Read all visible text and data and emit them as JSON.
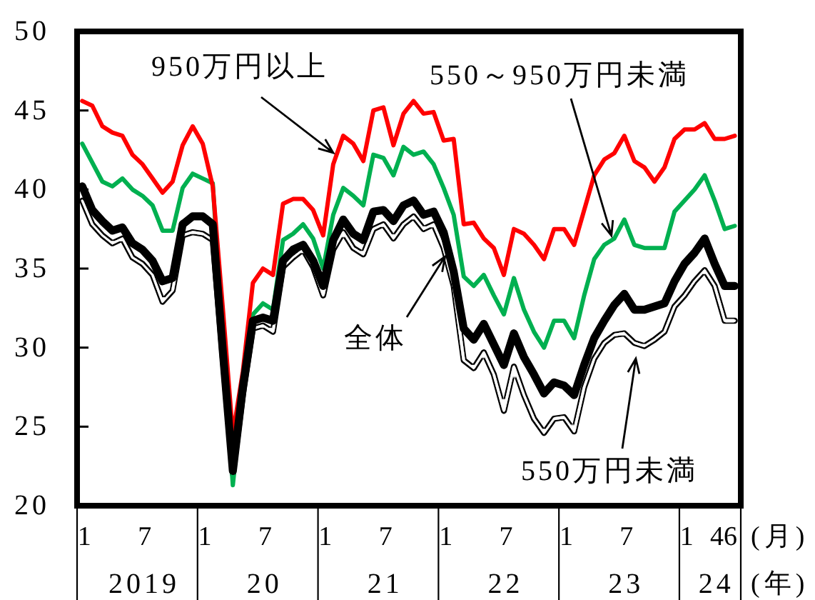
{
  "chart_data": {
    "type": "line",
    "x": [
      "2019-01",
      "2019-02",
      "2019-03",
      "2019-04",
      "2019-05",
      "2019-06",
      "2019-07",
      "2019-08",
      "2019-09",
      "2019-10",
      "2019-11",
      "2019-12",
      "2020-01",
      "2020-02",
      "2020-03",
      "2020-04",
      "2020-05",
      "2020-06",
      "2020-07",
      "2020-08",
      "2020-09",
      "2020-10",
      "2020-11",
      "2020-12",
      "2021-01",
      "2021-02",
      "2021-03",
      "2021-04",
      "2021-05",
      "2021-06",
      "2021-07",
      "2021-08",
      "2021-09",
      "2021-10",
      "2021-11",
      "2021-12",
      "2022-01",
      "2022-02",
      "2022-03",
      "2022-04",
      "2022-05",
      "2022-06",
      "2022-07",
      "2022-08",
      "2022-09",
      "2022-10",
      "2022-11",
      "2022-12",
      "2023-01",
      "2023-02",
      "2023-03",
      "2023-04",
      "2023-05",
      "2023-06",
      "2023-07",
      "2023-08",
      "2023-09",
      "2023-10",
      "2023-11",
      "2023-12",
      "2024-01",
      "2024-02",
      "2024-03",
      "2024-04",
      "2024-05",
      "2024-06"
    ],
    "xlim": [
      "2018-12-16",
      "2024-06-19"
    ],
    "xticks": [
      {
        "value": "2018-12-16",
        "label": null
      },
      {
        "value": "2019-12-16",
        "label": null
      },
      {
        "value": "2020-12-16",
        "label": null
      },
      {
        "value": "2021-12-16",
        "label": null
      },
      {
        "value": "2022-12-16",
        "label": null
      },
      {
        "value": "2023-12-16",
        "label": null
      },
      {
        "value": "2024-06-19",
        "label": null
      },
      {
        "value": "2019-01",
        "label": "1"
      },
      {
        "value": "2019-07",
        "label": "7"
      },
      {
        "value": "2020-01",
        "label": "1"
      },
      {
        "value": "2020-07",
        "label": "7"
      },
      {
        "value": "2021-01",
        "label": "1"
      },
      {
        "value": "2021-07",
        "label": "7"
      },
      {
        "value": "2022-01",
        "label": "1"
      },
      {
        "value": "2022-07",
        "label": "7"
      },
      {
        "value": "2023-01",
        "label": "1"
      },
      {
        "value": "2023-07",
        "label": "7"
      },
      {
        "value": "2024-01",
        "label": "1"
      },
      {
        "value": "2024-04",
        "label": "4"
      },
      {
        "value": "2024-06",
        "label": "6"
      }
    ],
    "xlabel": "(月)",
    "x2lim": [
      "2018-12-16",
      "2024-06-19"
    ],
    "x2ticks": [
      {
        "value": "2019-07",
        "label": "2019"
      },
      {
        "value": "2020-07",
        "label": "20"
      },
      {
        "value": "2021-07",
        "label": "21"
      },
      {
        "value": "2022-07",
        "label": "22"
      },
      {
        "value": "2023-07",
        "label": "23"
      },
      {
        "value": "2024-04",
        "label": "24"
      }
    ],
    "x2label": "(年)",
    "ylim": [
      20,
      50
    ],
    "yticks": [
      20,
      25,
      30,
      35,
      40,
      45,
      50
    ],
    "series": [
      {
        "name": "550万円未満",
        "color": "#000000",
        "values": [
          39.3,
          37.8,
          37.1,
          36.6,
          36.9,
          35.7,
          35.3,
          34.6,
          32.9,
          33.6,
          37.1,
          37.3,
          37.2,
          36.8,
          29.3,
          22.0,
          27.0,
          31.2,
          31.4,
          31.0,
          35.1,
          35.7,
          36.2,
          35.1,
          33.3,
          36.2,
          37.3,
          36.3,
          35.9,
          37.5,
          37.8,
          36.9,
          37.8,
          38.3,
          37.5,
          37.8,
          36.3,
          33.9,
          29.2,
          28.7,
          29.7,
          28.3,
          26.0,
          28.8,
          27.0,
          25.5,
          24.6,
          25.5,
          25.6,
          24.7,
          27.5,
          29.3,
          30.3,
          30.8,
          30.9,
          30.3,
          30.1,
          30.5,
          31.0,
          32.6,
          33.3,
          34.2,
          34.9,
          33.9,
          31.7,
          31.7
        ]
      },
      {
        "name": "550～950万円未満",
        "color": "#00b050",
        "values": [
          42.9,
          41.7,
          40.5,
          40.2,
          40.7,
          40.0,
          39.6,
          39.0,
          37.4,
          37.4,
          40.1,
          41.0,
          40.7,
          40.4,
          30.5,
          21.3,
          27.5,
          32.1,
          32.8,
          32.4,
          36.8,
          37.2,
          37.8,
          36.9,
          35.0,
          38.4,
          40.1,
          39.6,
          39.0,
          42.2,
          42.0,
          40.9,
          42.7,
          42.2,
          42.4,
          41.6,
          40.1,
          38.4,
          34.5,
          33.9,
          34.6,
          33.3,
          32.1,
          34.4,
          32.4,
          31.0,
          30.0,
          31.7,
          31.7,
          30.6,
          33.3,
          35.6,
          36.5,
          36.9,
          38.1,
          36.5,
          36.3,
          36.3,
          36.3,
          38.6,
          39.3,
          40.0,
          40.9,
          39.3,
          37.5,
          37.7
        ]
      },
      {
        "name": "950万円以上",
        "color": "#ff0000",
        "values": [
          45.6,
          45.3,
          44.0,
          43.6,
          43.4,
          42.2,
          41.6,
          40.7,
          39.8,
          40.5,
          42.8,
          44.0,
          42.9,
          40.2,
          32.5,
          24.5,
          28.5,
          34.1,
          35.0,
          34.6,
          39.1,
          39.4,
          39.4,
          38.7,
          37.1,
          41.6,
          43.4,
          42.9,
          41.8,
          45.0,
          45.2,
          42.8,
          44.8,
          45.6,
          44.8,
          44.9,
          43.1,
          43.2,
          37.8,
          37.9,
          36.9,
          36.3,
          34.6,
          37.5,
          37.2,
          36.5,
          35.6,
          37.5,
          37.5,
          36.5,
          38.7,
          40.9,
          41.9,
          42.3,
          43.4,
          41.8,
          41.4,
          40.5,
          41.4,
          43.2,
          43.8,
          43.8,
          44.2,
          43.2,
          43.2,
          43.4
        ]
      },
      {
        "name": "全体",
        "color": "#000000",
        "values": [
          40.2,
          38.7,
          38.0,
          37.4,
          37.6,
          36.6,
          36.2,
          35.5,
          34.2,
          34.4,
          37.8,
          38.3,
          38.3,
          37.8,
          29.8,
          22.2,
          27.5,
          31.7,
          31.9,
          31.7,
          35.5,
          36.2,
          36.5,
          35.5,
          33.9,
          36.8,
          38.1,
          37.2,
          36.8,
          38.6,
          38.7,
          38.0,
          39.0,
          39.3,
          38.4,
          38.6,
          37.3,
          34.8,
          31.2,
          30.5,
          31.5,
          30.2,
          28.9,
          30.9,
          29.4,
          28.3,
          27.1,
          27.8,
          27.6,
          27.0,
          28.9,
          30.6,
          31.7,
          32.7,
          33.4,
          32.4,
          32.4,
          32.6,
          32.8,
          34.2,
          35.3,
          36.0,
          36.9,
          35.3,
          33.9,
          33.9
        ]
      }
    ]
  }
}
